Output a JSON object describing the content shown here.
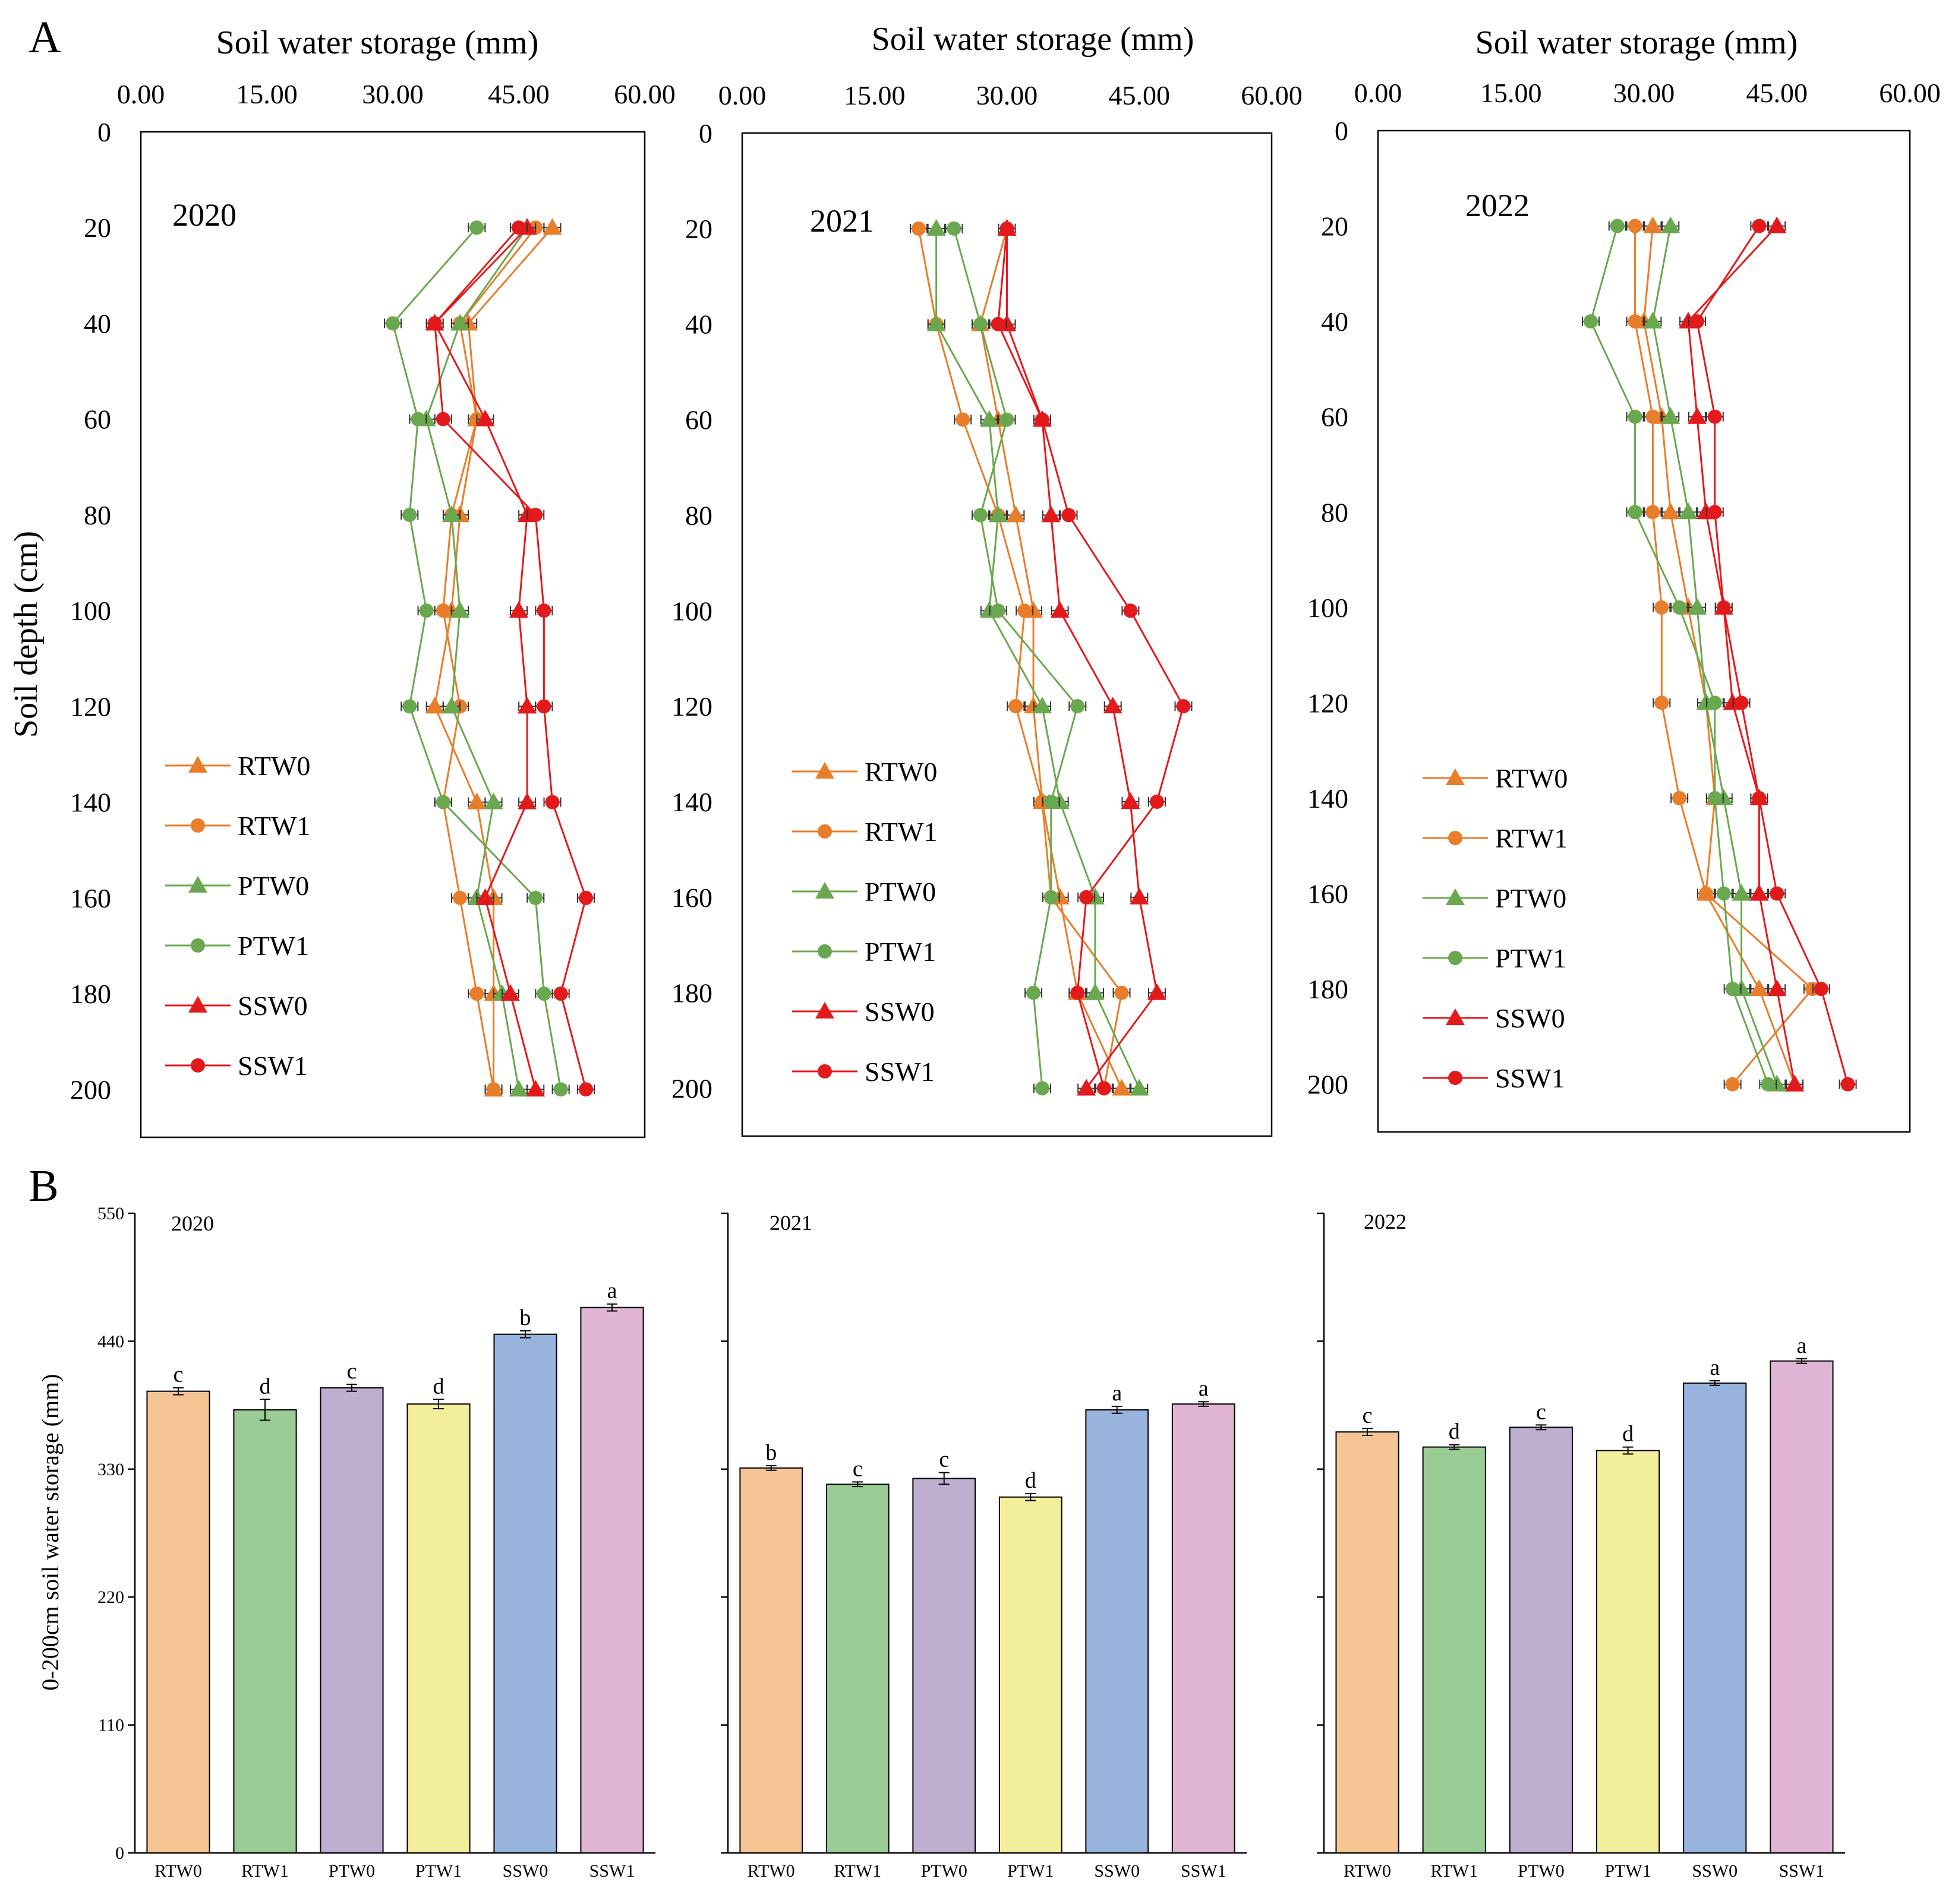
{
  "panel_a_label": "A",
  "panel_b_label": "B",
  "colors": {
    "RT": "#E87D2A",
    "PT": "#6AA84F",
    "SS": "#E31A1C",
    "bars": [
      "#F5C595",
      "#9ACD95",
      "#BEAFD1",
      "#F2EE9C",
      "#98B3DC",
      "#E0B4D5"
    ]
  },
  "chart_data": [
    {
      "type": "line",
      "title": "2020",
      "xlabel": "Soil water storage (mm)",
      "ylabel": "Soil depth (cm)",
      "xlim": [
        0,
        60
      ],
      "ylim": [
        0,
        210
      ],
      "xticks": [
        "0.00",
        "15.00",
        "30.00",
        "45.00",
        "60.00"
      ],
      "yticks": [
        "0",
        "20",
        "40",
        "60",
        "80",
        "100",
        "120",
        "140",
        "160",
        "180",
        "200"
      ],
      "depths": [
        20,
        40,
        60,
        80,
        100,
        120,
        140,
        160,
        180,
        200
      ],
      "series": [
        {
          "name": "RTW0",
          "marker": "triangle",
          "group": "RT",
          "values": [
            49,
            39,
            40,
            38,
            37,
            35,
            40,
            42,
            42,
            42
          ]
        },
        {
          "name": "RTW1",
          "marker": "circle",
          "group": "RT",
          "values": [
            47,
            38,
            40,
            37,
            36,
            38,
            36,
            38,
            40,
            42
          ]
        },
        {
          "name": "PTW0",
          "marker": "triangle",
          "group": "PT",
          "values": [
            46,
            38,
            34,
            37,
            38,
            37,
            42,
            40,
            43,
            45
          ]
        },
        {
          "name": "PTW1",
          "marker": "circle",
          "group": "PT",
          "values": [
            40,
            30,
            33,
            32,
            34,
            32,
            36,
            47,
            48,
            50
          ]
        },
        {
          "name": "SSW0",
          "marker": "triangle",
          "group": "SS",
          "values": [
            46,
            35,
            41,
            46,
            45,
            46,
            46,
            41,
            44,
            47
          ]
        },
        {
          "name": "SSW1",
          "marker": "circle",
          "group": "SS",
          "values": [
            45,
            35,
            36,
            47,
            48,
            48,
            49,
            53,
            50,
            53
          ]
        }
      ]
    },
    {
      "type": "line",
      "title": "2021",
      "xlabel": "Soil water storage (mm)",
      "ylabel": "Soil depth (cm)",
      "xlim": [
        0,
        60
      ],
      "ylim": [
        0,
        210
      ],
      "xticks": [
        "0.00",
        "15.00",
        "30.00",
        "45.00",
        "60.00"
      ],
      "yticks": [
        "0",
        "20",
        "40",
        "60",
        "80",
        "100",
        "120",
        "140",
        "160",
        "180",
        "200"
      ],
      "depths": [
        20,
        40,
        60,
        80,
        100,
        120,
        140,
        160,
        180,
        200
      ],
      "series": [
        {
          "name": "RTW0",
          "marker": "triangle",
          "group": "RT",
          "values": [
            30,
            27,
            29,
            31,
            33,
            33,
            34,
            36,
            38,
            43
          ]
        },
        {
          "name": "RTW1",
          "marker": "circle",
          "group": "RT",
          "values": [
            20,
            22,
            25,
            29,
            32,
            31,
            34,
            35,
            43,
            41
          ]
        },
        {
          "name": "PTW0",
          "marker": "triangle",
          "group": "PT",
          "values": [
            22,
            22,
            28,
            29,
            28,
            34,
            36,
            40,
            40,
            45
          ]
        },
        {
          "name": "PTW1",
          "marker": "circle",
          "group": "PT",
          "values": [
            24,
            27,
            30,
            27,
            29,
            38,
            35,
            35,
            33,
            34
          ]
        },
        {
          "name": "SSW0",
          "marker": "triangle",
          "group": "SS",
          "values": [
            30,
            30,
            34,
            35,
            36,
            42,
            44,
            45,
            47,
            39
          ]
        },
        {
          "name": "SSW1",
          "marker": "circle",
          "group": "SS",
          "values": [
            30,
            29,
            34,
            37,
            44,
            50,
            47,
            39,
            38,
            41
          ]
        }
      ]
    },
    {
      "type": "line",
      "title": "2022",
      "xlabel": "Soil water storage (mm)",
      "ylabel": "Soil depth (cm)",
      "xlim": [
        0,
        60
      ],
      "ylim": [
        0,
        210
      ],
      "xticks": [
        "0.00",
        "15.00",
        "30.00",
        "45.00",
        "60.00"
      ],
      "yticks": [
        "0",
        "20",
        "40",
        "60",
        "80",
        "100",
        "120",
        "140",
        "160",
        "180",
        "200"
      ],
      "depths": [
        20,
        40,
        60,
        80,
        100,
        120,
        140,
        160,
        180,
        200
      ],
      "series": [
        {
          "name": "RTW0",
          "marker": "triangle",
          "group": "RT",
          "values": [
            31,
            30,
            32,
            33,
            35,
            37,
            38,
            37,
            43,
            47
          ]
        },
        {
          "name": "RTW1",
          "marker": "circle",
          "group": "RT",
          "values": [
            29,
            29,
            31,
            31,
            32,
            32,
            34,
            37,
            49,
            40
          ]
        },
        {
          "name": "PTW0",
          "marker": "triangle",
          "group": "PT",
          "values": [
            33,
            31,
            33,
            35,
            36,
            37,
            39,
            41,
            41,
            45
          ]
        },
        {
          "name": "PTW1",
          "marker": "circle",
          "group": "PT",
          "values": [
            27,
            24,
            29,
            29,
            34,
            38,
            38,
            39,
            40,
            44
          ]
        },
        {
          "name": "SSW0",
          "marker": "triangle",
          "group": "SS",
          "values": [
            45,
            35,
            36,
            37,
            39,
            40,
            43,
            43,
            45,
            47
          ]
        },
        {
          "name": "SSW1",
          "marker": "circle",
          "group": "SS",
          "values": [
            43,
            36,
            38,
            38,
            39,
            41,
            43,
            45,
            50,
            53
          ]
        }
      ]
    },
    {
      "type": "bar",
      "title": "2020",
      "ylabel": "0-200cm soil water storage (mm)",
      "ylim": [
        0,
        550
      ],
      "yticks": [
        "0",
        "110",
        "220",
        "330",
        "440",
        "550"
      ],
      "categories": [
        "RTW0",
        "RTW1",
        "PTW0",
        "PTW1",
        "SSW0",
        "SSW1"
      ],
      "values": [
        397,
        381,
        400,
        386,
        446,
        469
      ],
      "errors": [
        3,
        9,
        3,
        4,
        3,
        3
      ],
      "letters": [
        "c",
        "d",
        "c",
        "d",
        "b",
        "a"
      ]
    },
    {
      "type": "bar",
      "title": "2021",
      "ylabel": "0-200cm soil water storage (mm)",
      "ylim": [
        0,
        550
      ],
      "yticks": [
        "0",
        "110",
        "220",
        "330",
        "440",
        "550"
      ],
      "categories": [
        "RTW0",
        "RTW1",
        "PTW0",
        "PTW1",
        "SSW0",
        "SSW1"
      ],
      "values": [
        331,
        317,
        322,
        306,
        381,
        386
      ],
      "errors": [
        2,
        2,
        5,
        3,
        3,
        2
      ],
      "letters": [
        "b",
        "c",
        "c",
        "d",
        "a",
        "a"
      ]
    },
    {
      "type": "bar",
      "title": "2022",
      "ylabel": "0-200cm soil water storage (mm)",
      "ylim": [
        0,
        550
      ],
      "yticks": [
        "0",
        "110",
        "220",
        "330",
        "440",
        "550"
      ],
      "categories": [
        "RTW0",
        "RTW1",
        "PTW0",
        "PTW1",
        "SSW0",
        "SSW1"
      ],
      "values": [
        362,
        349,
        366,
        346,
        404,
        423
      ],
      "errors": [
        3,
        2,
        2,
        3,
        2,
        2
      ],
      "letters": [
        "c",
        "d",
        "c",
        "d",
        "a",
        "a"
      ]
    }
  ]
}
